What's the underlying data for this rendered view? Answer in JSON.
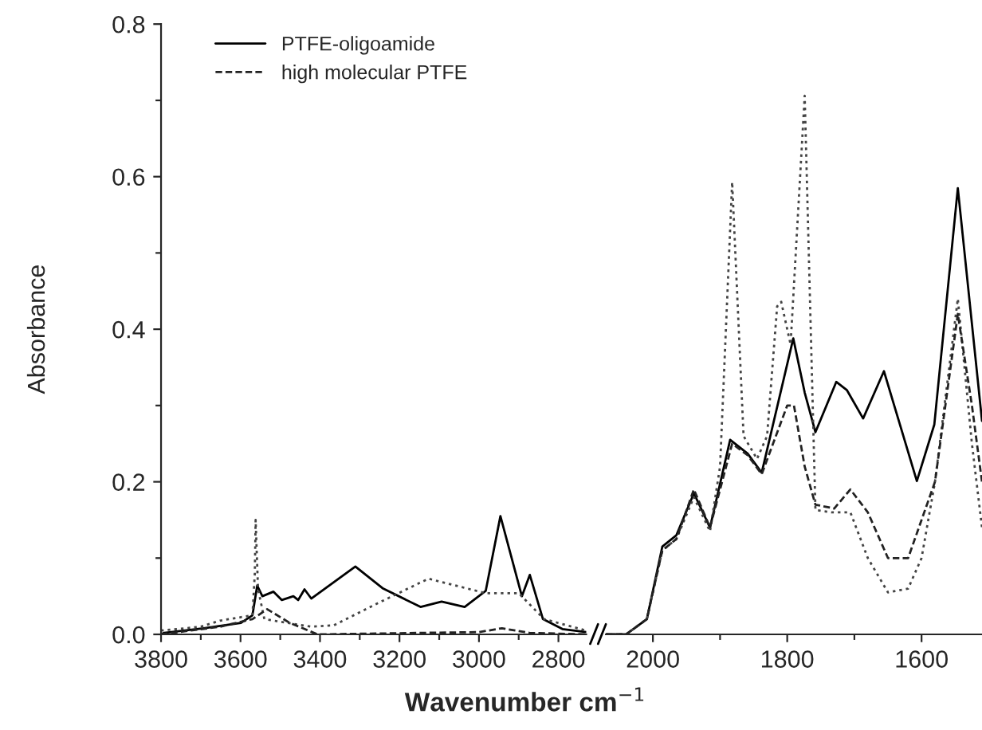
{
  "chart_data": [
    {
      "type": "line",
      "xlabel": "Wavenumber cm$^{−1}$",
      "ylabel": "Absorbance",
      "xlim": [
        3800,
        2730
      ],
      "ylim": [
        0,
        0.8
      ],
      "xticks": [
        3800,
        {
          "value": 3700,
          "label": null
        },
        3600,
        {
          "value": 3500,
          "label": null
        },
        3400,
        {
          "value": 3300,
          "label": null
        },
        3200,
        {
          "value": 3100,
          "label": null
        },
        3000,
        {
          "value": 2900,
          "label": null
        },
        2800
      ],
      "yticks": [
        {
          "value": 0,
          "label": "0.0"
        },
        {
          "value": 0.1,
          "label": null
        },
        0.2,
        {
          "value": 0.3,
          "label": null
        },
        0.4,
        {
          "value": 0.5,
          "label": null
        },
        0.6,
        {
          "value": 0.7,
          "label": null
        },
        0.8
      ],
      "legend": "top left",
      "series": [
        {
          "name": "PTFE-oligoamide",
          "color": "#000000",
          "line_style": "solid",
          "x": [
            3800,
            3792,
            3693,
            3599,
            3570,
            3558,
            3545,
            3517,
            3496,
            3467,
            3455,
            3439,
            3422,
            3311,
            3241,
            3147,
            3094,
            3036,
            2983,
            2946,
            2892,
            2872,
            2839,
            2790,
            2730
          ],
          "values": [
            0.0,
            0.002,
            0.008,
            0.015,
            0.025,
            0.064,
            0.05,
            0.056,
            0.045,
            0.05,
            0.045,
            0.059,
            0.047,
            0.089,
            0.06,
            0.036,
            0.043,
            0.036,
            0.057,
            0.155,
            0.05,
            0.078,
            0.02,
            0.007,
            0.003
          ]
        },
        {
          "color": "#444444",
          "line_style": "dotted",
          "x": [
            3800,
            3700,
            3652,
            3570,
            3564,
            3562,
            3556,
            3540,
            3422,
            3365,
            3258,
            3127,
            2983,
            2900,
            2836,
            2730
          ],
          "values": [
            0.005,
            0.01,
            0.018,
            0.025,
            0.08,
            0.15,
            0.06,
            0.02,
            0.01,
            0.012,
            0.04,
            0.073,
            0.054,
            0.054,
            0.02,
            0.005
          ]
        },
        {
          "name": "high molecular PTFE",
          "color": "#222222",
          "line_style": "dashed",
          "x": [
            3800,
            3652,
            3570,
            3533,
            3476,
            3406,
            3000,
            2942,
            2873,
            2730
          ],
          "values": [
            0.0,
            0.01,
            0.02,
            0.033,
            0.015,
            0.0,
            0.003,
            0.008,
            0.002,
            0.0
          ]
        }
      ]
    },
    {
      "type": "line",
      "xlim": [
        2070,
        1510
      ],
      "ylim": [
        0,
        0.8
      ],
      "tick_labels": "x",
      "xticks": [
        2000,
        {
          "value": 1900,
          "label": null
        },
        1800,
        {
          "value": 1700,
          "label": null
        },
        1600
      ],
      "series": [
        {
          "color": "#000000",
          "line_style": "solid",
          "x": [
            2070,
            2040,
            2009,
            1986,
            1965,
            1939,
            1915,
            1885,
            1859,
            1838,
            1791,
            1774,
            1758,
            1727,
            1711,
            1687,
            1656,
            1607,
            1581,
            1546,
            1510
          ],
          "values": [
            0.0,
            0.0,
            0.02,
            0.115,
            0.13,
            0.185,
            0.14,
            0.255,
            0.237,
            0.212,
            0.388,
            0.317,
            0.265,
            0.331,
            0.32,
            0.283,
            0.345,
            0.201,
            0.275,
            0.585,
            0.28
          ]
        },
        {
          "color": "#444444",
          "line_style": "dotted",
          "x": [
            2070,
            2040,
            2009,
            1986,
            1965,
            1939,
            1915,
            1900,
            1882,
            1865,
            1845,
            1830,
            1815,
            1809,
            1795,
            1774,
            1758,
            1734,
            1706,
            1680,
            1650,
            1620,
            1600,
            1580,
            1546,
            1525,
            1510
          ],
          "values": [
            0.0,
            0.0,
            0.02,
            0.11,
            0.125,
            0.18,
            0.135,
            0.22,
            0.593,
            0.26,
            0.23,
            0.26,
            0.43,
            0.436,
            0.38,
            0.706,
            0.163,
            0.16,
            0.16,
            0.1,
            0.055,
            0.06,
            0.1,
            0.2,
            0.44,
            0.25,
            0.14
          ]
        },
        {
          "color": "#222222",
          "line_style": "dashed",
          "x": [
            2070,
            2040,
            2009,
            1986,
            1965,
            1939,
            1915,
            1882,
            1859,
            1838,
            1800,
            1790,
            1774,
            1758,
            1730,
            1706,
            1680,
            1650,
            1620,
            1580,
            1546,
            1525,
            1510
          ],
          "values": [
            0.0,
            0.0,
            0.02,
            0.11,
            0.125,
            0.19,
            0.14,
            0.25,
            0.235,
            0.21,
            0.3,
            0.3,
            0.22,
            0.17,
            0.165,
            0.19,
            0.16,
            0.1,
            0.1,
            0.2,
            0.42,
            0.3,
            0.2
          ]
        }
      ]
    }
  ]
}
